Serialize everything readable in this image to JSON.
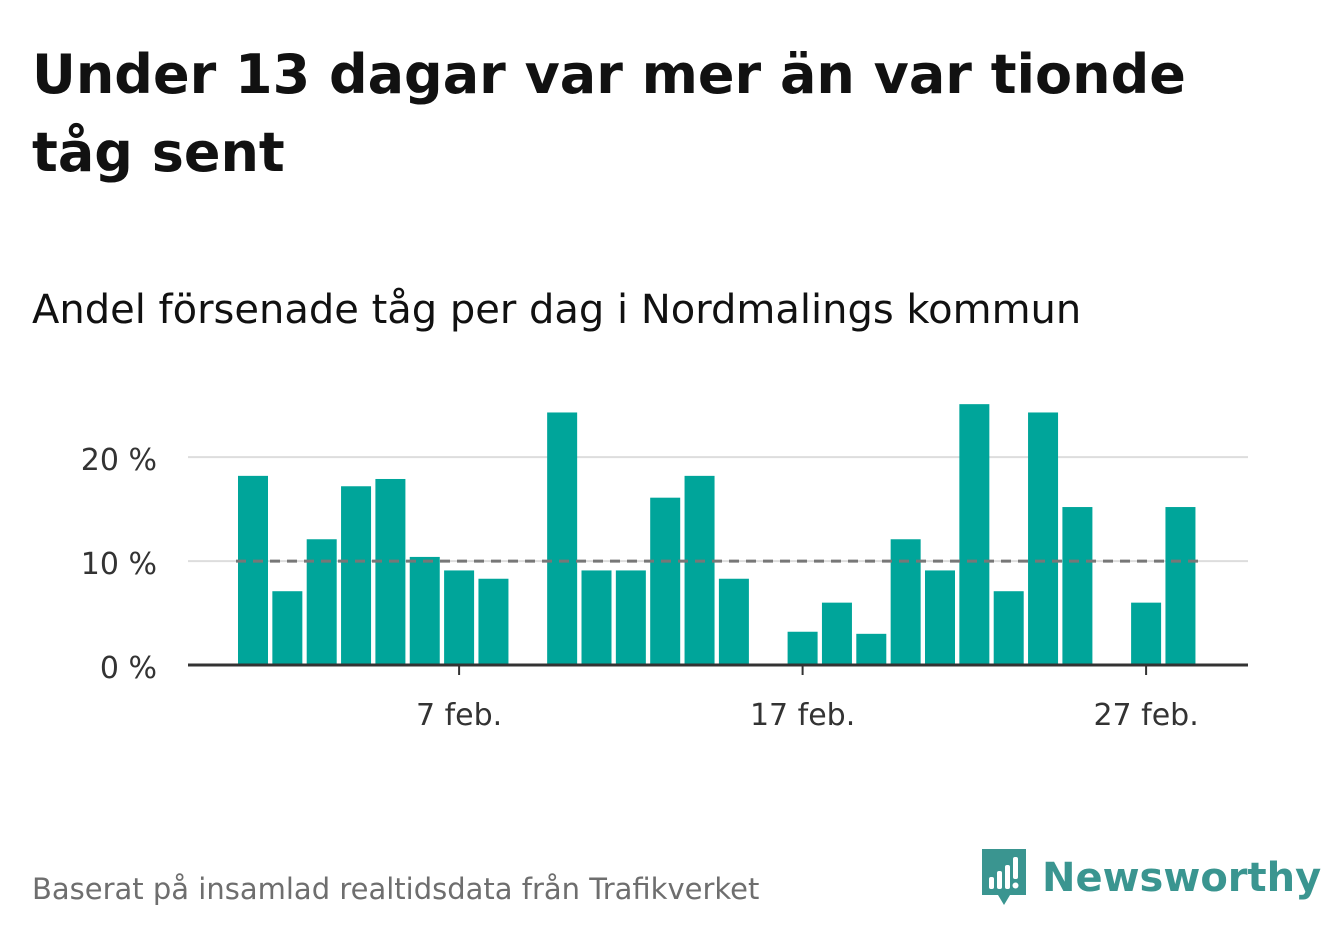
{
  "header": {
    "title": "Under 13 dagar var mer än var tionde tåg sent",
    "subtitle": "Andel försenade tåg per dag i Nordmalings kommun"
  },
  "footer": {
    "source": "Baserat på insamlad realtidsdata från Trafikverket",
    "brand_name": "Newsworthy",
    "brand_icon": "newsworthy-logo-icon"
  },
  "colors": {
    "bar": "#00a59a",
    "brand": "#3a9590",
    "gridline": "#dddddd",
    "reference_line": "#777777",
    "axis": "#333333",
    "tick_text": "#333333",
    "source_text": "#6e6e6e"
  },
  "chart_data": {
    "type": "bar",
    "title": "",
    "xlabel": "",
    "ylabel": "",
    "ylim": [
      0,
      25.5
    ],
    "y_ticks": [
      {
        "value": 0,
        "label": "0 %"
      },
      {
        "value": 10,
        "label": "10 %"
      },
      {
        "value": 20,
        "label": "20 %"
      }
    ],
    "x_ticks": [
      {
        "date": "2023-02-07",
        "label": "7 feb."
      },
      {
        "date": "2023-02-17",
        "label": "17 feb."
      },
      {
        "date": "2023-02-27",
        "label": "27 feb."
      }
    ],
    "grid": true,
    "reference_line": {
      "value": 10,
      "style": "dashed"
    },
    "x": [
      "2023-02-01",
      "2023-02-02",
      "2023-02-03",
      "2023-02-04",
      "2023-02-05",
      "2023-02-06",
      "2023-02-07",
      "2023-02-08",
      "2023-02-09",
      "2023-02-10",
      "2023-02-11",
      "2023-02-12",
      "2023-02-13",
      "2023-02-14",
      "2023-02-15",
      "2023-02-16",
      "2023-02-17",
      "2023-02-18",
      "2023-02-19",
      "2023-02-20",
      "2023-02-21",
      "2023-02-22",
      "2023-02-23",
      "2023-02-24",
      "2023-02-25",
      "2023-02-26",
      "2023-02-27",
      "2023-02-28"
    ],
    "values": [
      18.2,
      7.1,
      12.1,
      17.2,
      17.9,
      10.4,
      9.1,
      8.3,
      0,
      24.3,
      9.1,
      9.1,
      16.1,
      18.2,
      8.3,
      0,
      3.2,
      6.0,
      3.0,
      12.1,
      9.1,
      25.1,
      7.1,
      24.3,
      15.2,
      0,
      6.0,
      15.2
    ]
  }
}
